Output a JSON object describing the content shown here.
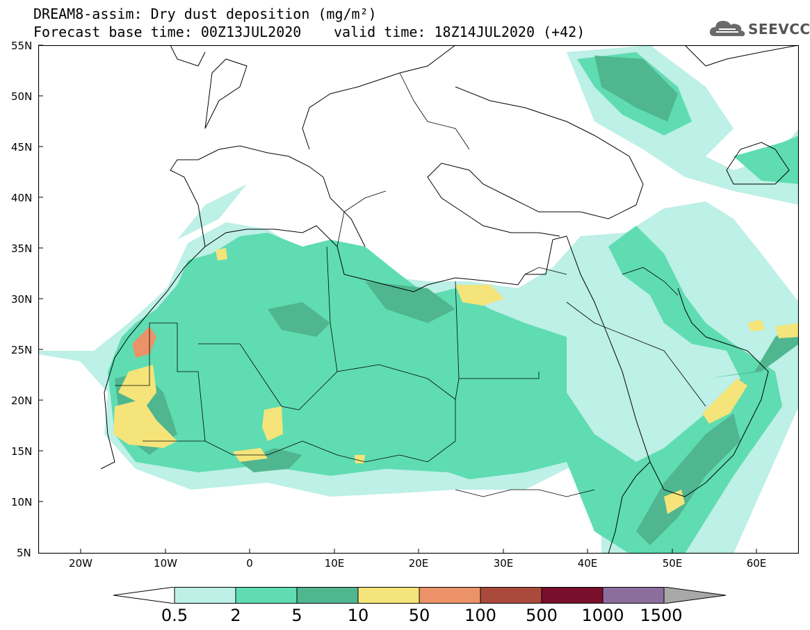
{
  "title_line1": "DREAM8-assim: Dry dust deposition (mg/m²)",
  "title_line2": "Forecast base time: 00Z13JUL2020",
  "valid_time": "valid time: 18Z14JUL2020 (+42)",
  "logo_text": "SEEVCCC",
  "lat_labels": [
    "55N",
    "50N",
    "45N",
    "40N",
    "35N",
    "30N",
    "25N",
    "20N",
    "15N",
    "10N",
    "5N"
  ],
  "lon_labels": [
    "20W",
    "10W",
    "0",
    "10E",
    "20E",
    "30E",
    "40E",
    "50E",
    "60E"
  ],
  "colorbar": {
    "labels": [
      "0.5",
      "2",
      "5",
      "10",
      "50",
      "100",
      "500",
      "1000",
      "1500"
    ],
    "colors": [
      "#bdf0e6",
      "#5fdcb2",
      "#4fb690",
      "#f5e47a",
      "#ec9268",
      "#aa4a3c",
      "#7a0f2c",
      "#8c6e9c"
    ],
    "below_color": "#ffffff",
    "above_color": "#a8a8a8"
  }
}
